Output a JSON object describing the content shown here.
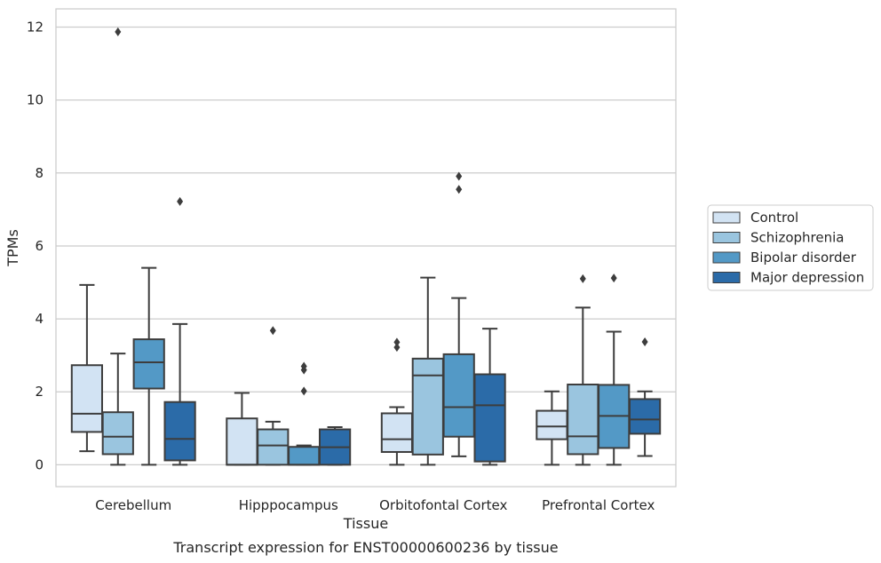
{
  "caption": "Transcript expression for ENST00000600236 by tissue",
  "chart_data": {
    "type": "box",
    "title": "",
    "xlabel": "Tissue",
    "ylabel": "TPMs",
    "ylim": [
      -0.6,
      12.5
    ],
    "yticks": [
      0,
      2,
      4,
      6,
      8,
      10,
      12
    ],
    "grid": "horizontal",
    "legend_position": "right",
    "categories": [
      "Cerebellum",
      "Hipppocampus",
      "Orbitofontal Cortex",
      "Prefrontal Cortex"
    ],
    "series": [
      {
        "name": "Control",
        "color": "#d2e3f3",
        "boxes": [
          {
            "whislo": 0.37,
            "q1": 0.9,
            "med": 1.4,
            "q3": 2.73,
            "whishi": 4.93,
            "fliers": []
          },
          {
            "whislo": 0.0,
            "q1": 0.0,
            "med": 0.0,
            "q3": 1.27,
            "whishi": 1.97,
            "fliers": []
          },
          {
            "whislo": 0.0,
            "q1": 0.35,
            "med": 0.7,
            "q3": 1.41,
            "whishi": 1.58,
            "fliers": [
              3.22,
              3.36
            ]
          },
          {
            "whislo": 0.0,
            "q1": 0.7,
            "med": 1.05,
            "q3": 1.48,
            "whishi": 2.01,
            "fliers": []
          }
        ]
      },
      {
        "name": "Schizophrenia",
        "color": "#9ac5df",
        "boxes": [
          {
            "whislo": 0.0,
            "q1": 0.29,
            "med": 0.77,
            "q3": 1.44,
            "whishi": 3.05,
            "fliers": [
              11.87
            ]
          },
          {
            "whislo": 0.0,
            "q1": 0.0,
            "med": 0.53,
            "q3": 0.97,
            "whishi": 1.18,
            "fliers": [
              3.68
            ]
          },
          {
            "whislo": 0.0,
            "q1": 0.28,
            "med": 2.45,
            "q3": 2.91,
            "whishi": 5.13,
            "fliers": []
          },
          {
            "whislo": 0.0,
            "q1": 0.29,
            "med": 0.78,
            "q3": 2.2,
            "whishi": 4.31,
            "fliers": [
              5.1
            ]
          }
        ]
      },
      {
        "name": "Bipolar disorder",
        "color": "#5399c6",
        "boxes": [
          {
            "whislo": 0.0,
            "q1": 2.09,
            "med": 2.81,
            "q3": 3.44,
            "whishi": 5.4,
            "fliers": []
          },
          {
            "whislo": 0.0,
            "q1": 0.0,
            "med": 0.0,
            "q3": 0.49,
            "whishi": 0.53,
            "fliers": [
              2.02,
              2.6,
              2.7
            ]
          },
          {
            "whislo": 0.23,
            "q1": 0.77,
            "med": 1.58,
            "q3": 3.03,
            "whishi": 4.57,
            "fliers": [
              7.55,
              7.91
            ]
          },
          {
            "whislo": 0.0,
            "q1": 0.46,
            "med": 1.34,
            "q3": 2.19,
            "whishi": 3.65,
            "fliers": [
              5.12
            ]
          }
        ]
      },
      {
        "name": "Major depression",
        "color": "#2b6ba8",
        "boxes": [
          {
            "whislo": 0.0,
            "q1": 0.12,
            "med": 0.71,
            "q3": 1.72,
            "whishi": 3.86,
            "fliers": [
              7.22
            ]
          },
          {
            "whislo": 0.0,
            "q1": 0.0,
            "med": 0.48,
            "q3": 0.97,
            "whishi": 1.03,
            "fliers": []
          },
          {
            "whislo": 0.0,
            "q1": 0.09,
            "med": 1.63,
            "q3": 2.48,
            "whishi": 3.73,
            "fliers": []
          },
          {
            "whislo": 0.24,
            "q1": 0.85,
            "med": 1.24,
            "q3": 1.8,
            "whishi": 2.01,
            "fliers": [
              3.37
            ]
          }
        ]
      }
    ]
  }
}
